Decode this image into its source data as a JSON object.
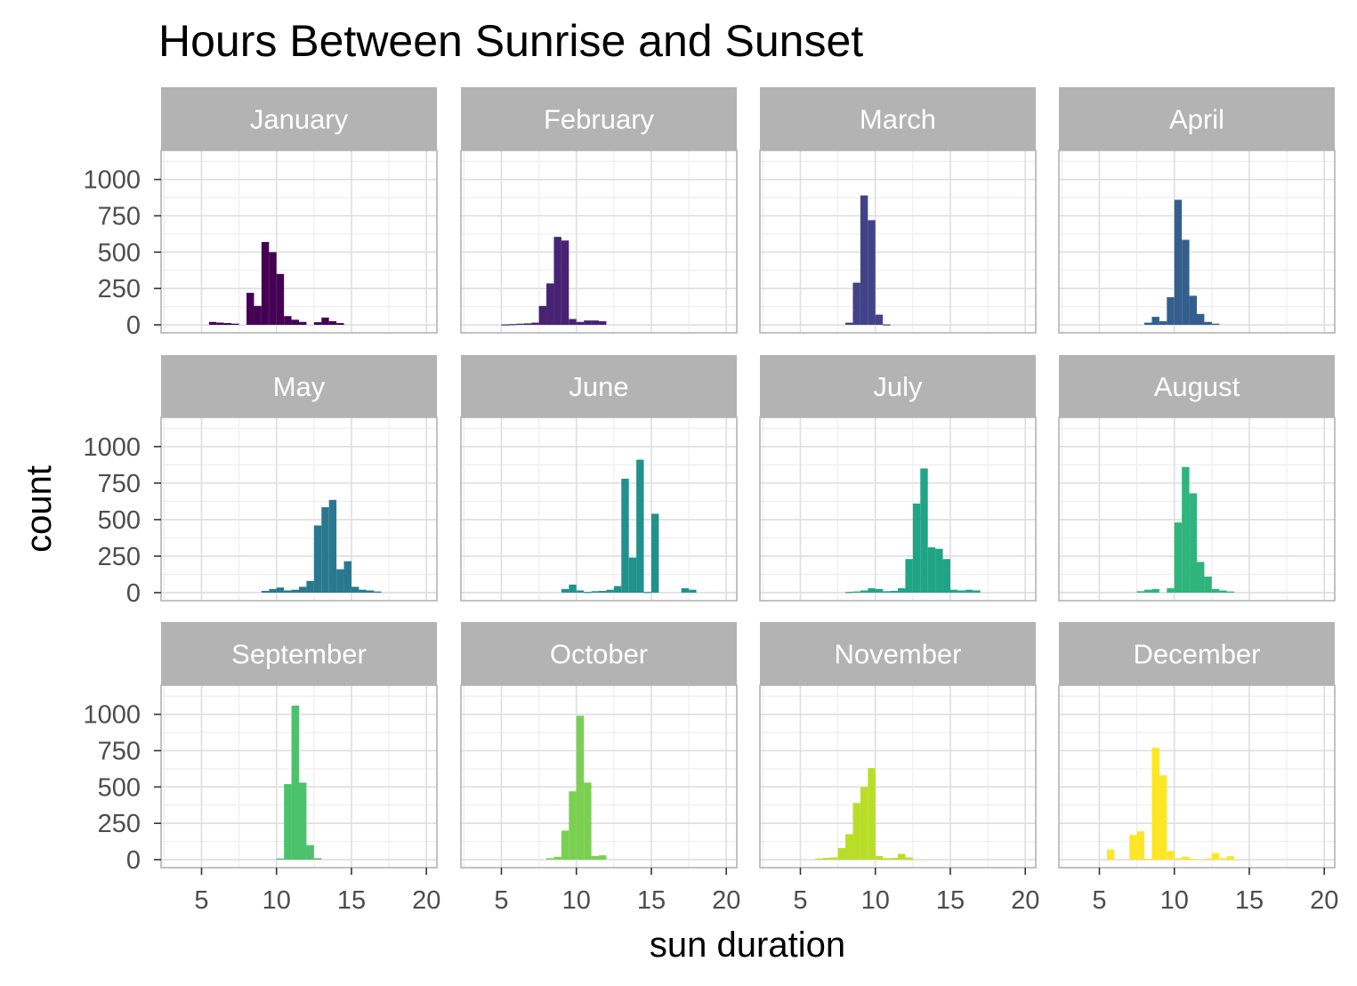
{
  "chart_data": {
    "type": "bar",
    "title": "Hours Between Sunrise and Sunset",
    "xlabel": "sun duration",
    "ylabel": "count",
    "xlim": [
      2.3,
      20.7
    ],
    "ylim": [
      -55,
      1200
    ],
    "x_ticks": [
      5,
      10,
      15,
      20
    ],
    "y_ticks": [
      0,
      250,
      500,
      750,
      1000
    ],
    "bin_width": 0.5,
    "grid": true,
    "legend": "none",
    "panels": [
      {
        "name": "January",
        "color": "#440154",
        "bins": [
          [
            5.75,
            20
          ],
          [
            6.25,
            15
          ],
          [
            6.75,
            12
          ],
          [
            7.25,
            8
          ],
          [
            8.25,
            220
          ],
          [
            8.75,
            130
          ],
          [
            9.25,
            570
          ],
          [
            9.75,
            500
          ],
          [
            10.25,
            350
          ],
          [
            10.75,
            60
          ],
          [
            11.25,
            35
          ],
          [
            11.75,
            20
          ],
          [
            12.75,
            18
          ],
          [
            13.25,
            50
          ],
          [
            13.75,
            25
          ],
          [
            14.25,
            12
          ]
        ]
      },
      {
        "name": "February",
        "color": "#482374",
        "bins": [
          [
            5.25,
            3
          ],
          [
            5.75,
            5
          ],
          [
            6.25,
            8
          ],
          [
            6.75,
            10
          ],
          [
            7.25,
            15
          ],
          [
            7.75,
            130
          ],
          [
            8.25,
            285
          ],
          [
            8.75,
            605
          ],
          [
            9.25,
            580
          ],
          [
            9.75,
            40
          ],
          [
            10.25,
            20
          ],
          [
            10.75,
            30
          ],
          [
            11.25,
            30
          ],
          [
            11.75,
            25
          ]
        ]
      },
      {
        "name": "March",
        "color": "#404387",
        "bins": [
          [
            8.25,
            15
          ],
          [
            8.75,
            290
          ],
          [
            9.25,
            890
          ],
          [
            9.75,
            720
          ],
          [
            10.25,
            70
          ],
          [
            10.75,
            3
          ]
        ]
      },
      {
        "name": "April",
        "color": "#345F8D",
        "bins": [
          [
            8.25,
            15
          ],
          [
            8.75,
            55
          ],
          [
            9.25,
            25
          ],
          [
            9.75,
            190
          ],
          [
            10.25,
            860
          ],
          [
            10.75,
            585
          ],
          [
            11.25,
            200
          ],
          [
            11.75,
            75
          ],
          [
            12.25,
            20
          ],
          [
            12.75,
            8
          ]
        ]
      },
      {
        "name": "May",
        "color": "#2A788E",
        "bins": [
          [
            9.25,
            12
          ],
          [
            9.75,
            25
          ],
          [
            10.25,
            35
          ],
          [
            10.75,
            15
          ],
          [
            11.25,
            20
          ],
          [
            11.75,
            40
          ],
          [
            12.25,
            80
          ],
          [
            12.75,
            460
          ],
          [
            13.25,
            585
          ],
          [
            13.75,
            635
          ],
          [
            14.25,
            160
          ],
          [
            14.75,
            215
          ],
          [
            15.25,
            40
          ],
          [
            15.75,
            20
          ],
          [
            16.25,
            15
          ],
          [
            16.75,
            8
          ]
        ]
      },
      {
        "name": "June",
        "color": "#21918C",
        "bins": [
          [
            9.25,
            25
          ],
          [
            9.75,
            55
          ],
          [
            10.25,
            15
          ],
          [
            10.75,
            5
          ],
          [
            11.25,
            10
          ],
          [
            11.75,
            12
          ],
          [
            12.25,
            20
          ],
          [
            12.75,
            45
          ],
          [
            13.25,
            780
          ],
          [
            13.75,
            240
          ],
          [
            14.25,
            910
          ],
          [
            14.75,
            5
          ],
          [
            15.25,
            540
          ],
          [
            17.25,
            30
          ],
          [
            17.75,
            20
          ]
        ]
      },
      {
        "name": "July",
        "color": "#20A486",
        "bins": [
          [
            8.25,
            5
          ],
          [
            8.75,
            8
          ],
          [
            9.25,
            15
          ],
          [
            9.75,
            30
          ],
          [
            10.25,
            25
          ],
          [
            10.75,
            10
          ],
          [
            11.25,
            12
          ],
          [
            11.75,
            30
          ],
          [
            12.25,
            230
          ],
          [
            12.75,
            610
          ],
          [
            13.25,
            850
          ],
          [
            13.75,
            310
          ],
          [
            14.25,
            300
          ],
          [
            14.75,
            230
          ],
          [
            15.25,
            20
          ],
          [
            15.75,
            15
          ],
          [
            16.25,
            20
          ],
          [
            16.75,
            15
          ]
        ]
      },
      {
        "name": "August",
        "color": "#2FB47C",
        "bins": [
          [
            7.75,
            10
          ],
          [
            8.25,
            20
          ],
          [
            8.75,
            25
          ],
          [
            9.75,
            30
          ],
          [
            10.25,
            480
          ],
          [
            10.75,
            860
          ],
          [
            11.25,
            680
          ],
          [
            11.75,
            210
          ],
          [
            12.25,
            110
          ],
          [
            12.75,
            25
          ],
          [
            13.25,
            15
          ],
          [
            13.75,
            8
          ]
        ]
      },
      {
        "name": "September",
        "color": "#4CC26C",
        "bins": [
          [
            10.25,
            8
          ],
          [
            10.75,
            520
          ],
          [
            11.25,
            1060
          ],
          [
            11.75,
            530
          ],
          [
            12.25,
            100
          ],
          [
            12.75,
            10
          ]
        ]
      },
      {
        "name": "October",
        "color": "#7AD151",
        "bins": [
          [
            8.25,
            10
          ],
          [
            8.75,
            20
          ],
          [
            9.25,
            200
          ],
          [
            9.75,
            470
          ],
          [
            10.25,
            990
          ],
          [
            10.75,
            530
          ],
          [
            11.25,
            25
          ],
          [
            11.75,
            30
          ]
        ]
      },
      {
        "name": "November",
        "color": "#BADE28",
        "bins": [
          [
            6.25,
            8
          ],
          [
            6.75,
            12
          ],
          [
            7.25,
            15
          ],
          [
            7.75,
            80
          ],
          [
            8.25,
            175
          ],
          [
            8.75,
            390
          ],
          [
            9.25,
            500
          ],
          [
            9.75,
            630
          ],
          [
            10.25,
            25
          ],
          [
            10.75,
            10
          ],
          [
            11.25,
            12
          ],
          [
            11.75,
            40
          ],
          [
            12.25,
            15
          ]
        ]
      },
      {
        "name": "December",
        "color": "#FDE725",
        "bins": [
          [
            5.75,
            70
          ],
          [
            7.25,
            170
          ],
          [
            7.75,
            195
          ],
          [
            8.25,
            5
          ],
          [
            8.75,
            770
          ],
          [
            9.25,
            580
          ],
          [
            9.75,
            60
          ],
          [
            10.25,
            10
          ],
          [
            10.75,
            20
          ],
          [
            11.25,
            5
          ],
          [
            12.25,
            8
          ],
          [
            12.75,
            45
          ],
          [
            13.25,
            10
          ],
          [
            13.75,
            25
          ]
        ]
      }
    ]
  }
}
